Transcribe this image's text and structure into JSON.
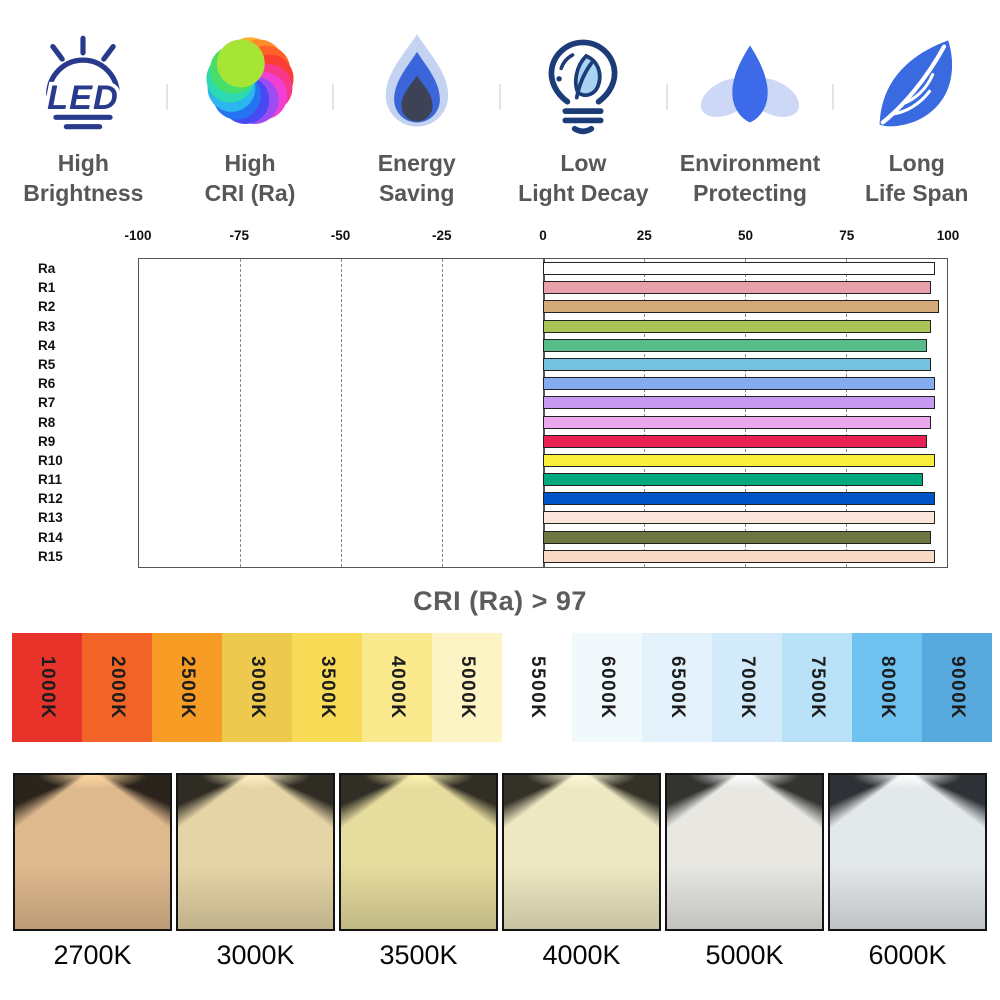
{
  "features": [
    {
      "icon": "led-icon",
      "line1": "High",
      "line2": "Brightness"
    },
    {
      "icon": "rainbow-swirl-icon",
      "line1": "High",
      "line2": "CRI (Ra)"
    },
    {
      "icon": "flame-icon",
      "line1": "Energy",
      "line2": "Saving"
    },
    {
      "icon": "bulb-leaf-icon",
      "line1": "Low",
      "line2": "Light Decay"
    },
    {
      "icon": "lotus-icon",
      "line1": "Environment",
      "line2": "Protecting"
    },
    {
      "icon": "leaf-icon",
      "line1": "Long",
      "line2": "Life Span"
    }
  ],
  "palette": {
    "icon_navy": "#283a8c",
    "icon_blue": "#3a66d9",
    "icon_light_blue": "#c5d3f2",
    "icon_leaf_fill": "#a8d4f2",
    "swirl_colors": [
      "#ffae2e",
      "#ff8c29",
      "#ff6128",
      "#fc3d33",
      "#f8398b",
      "#f23fd3",
      "#9c4cf2",
      "#4749f2",
      "#2573f2",
      "#2ab6ee",
      "#2cd9b0",
      "#47df6a",
      "#a6e435"
    ]
  },
  "chart_data": {
    "type": "bar",
    "orientation": "horizontal",
    "title": "CRI (Ra) > 97",
    "categories": [
      "Ra",
      "R1",
      "R2",
      "R3",
      "R4",
      "R5",
      "R6",
      "R7",
      "R8",
      "R9",
      "R10",
      "R11",
      "R12",
      "R13",
      "R14",
      "R15"
    ],
    "values": [
      97,
      96,
      98,
      96,
      95,
      96,
      97,
      97,
      96,
      95,
      97,
      94,
      97,
      97,
      96,
      97
    ],
    "bar_colors": [
      "#ffffff",
      "#e8a0aa",
      "#d3aa79",
      "#a9c355",
      "#57bb8a",
      "#74c3de",
      "#85abf0",
      "#c79af0",
      "#eba9ec",
      "#e82253",
      "#f7ef3a",
      "#00a87e",
      "#0053c6",
      "#fbe4dc",
      "#6e7742",
      "#f8d9c3"
    ],
    "xlabel": "",
    "ylabel": "",
    "xlim": [
      -100,
      100
    ],
    "x_ticks": [
      -100,
      -75,
      -50,
      -25,
      0,
      25,
      50,
      75,
      100
    ],
    "dashed_gridlines": [
      -75,
      -50,
      -25,
      25,
      50,
      75
    ],
    "grid": true,
    "legend": false
  },
  "temperature_scale": {
    "swatches": [
      {
        "label": "1000K",
        "color": "#e8332a"
      },
      {
        "label": "2000K",
        "color": "#f26327"
      },
      {
        "label": "2500K",
        "color": "#f79d26"
      },
      {
        "label": "3000K",
        "color": "#edc94d"
      },
      {
        "label": "3500K",
        "color": "#f8db57"
      },
      {
        "label": "4000K",
        "color": "#fbe98e"
      },
      {
        "label": "5000K",
        "color": "#fdf4c6"
      },
      {
        "label": "5500K",
        "color": "#ffffff"
      },
      {
        "label": "6000K",
        "color": "#f2f9fd"
      },
      {
        "label": "6500K",
        "color": "#e3f1fb"
      },
      {
        "label": "7000K",
        "color": "#d2eafa"
      },
      {
        "label": "7500K",
        "color": "#b9e1f8"
      },
      {
        "label": "8000K",
        "color": "#6fc1ef"
      },
      {
        "label": "9000K",
        "color": "#57a9de"
      }
    ]
  },
  "beam_panels": [
    {
      "label": "2700K",
      "spot": "#ffd9a0",
      "beam": "#dfb98e",
      "dark": "#2b241c"
    },
    {
      "label": "3000K",
      "spot": "#fff0c4",
      "beam": "#e5d4a6",
      "dark": "#2f2c24"
    },
    {
      "label": "3500K",
      "spot": "#fdf3b2",
      "beam": "#e6dc9e",
      "dark": "#302e25"
    },
    {
      "label": "4000K",
      "spot": "#fdf8d6",
      "beam": "#eee8c2",
      "dark": "#343228"
    },
    {
      "label": "5000K",
      "spot": "#ffffff",
      "beam": "#e8e7e2",
      "dark": "#333331"
    },
    {
      "label": "6000K",
      "spot": "#ffffff",
      "beam": "#e3e8eb",
      "dark": "#2e3236"
    }
  ]
}
